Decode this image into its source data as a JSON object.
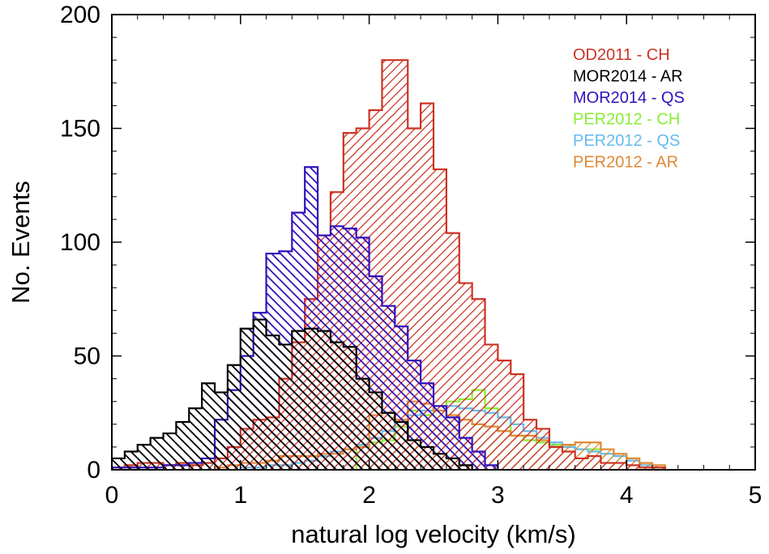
{
  "chart_data": {
    "type": "histogram",
    "title": "",
    "xlabel": "natural log velocity (km/s)",
    "ylabel": "No. Events",
    "xlim": [
      0,
      5
    ],
    "ylim": [
      0,
      200
    ],
    "xticks": [
      0,
      1,
      2,
      3,
      4,
      5
    ],
    "yticks": [
      0,
      50,
      100,
      150,
      200
    ],
    "legend_position": "top-right",
    "bin_width": 0.1,
    "series": [
      {
        "name": "PER2012 - CH",
        "color": "#88ee33",
        "hatch": "right",
        "x": [
          1.9,
          2.0,
          2.1,
          2.2,
          2.3,
          2.4,
          2.5,
          2.6,
          2.7,
          2.8,
          2.9,
          3.0,
          3.1,
          3.2,
          3.3,
          3.4,
          3.5,
          3.6,
          3.7,
          3.8,
          3.9,
          4.0,
          4.1,
          4.2
        ],
        "values": [
          10,
          12,
          13,
          19,
          26,
          24,
          28,
          30,
          31,
          35,
          27,
          23,
          15,
          13,
          12,
          11,
          10,
          9,
          9,
          7,
          6,
          5,
          3,
          1
        ]
      },
      {
        "name": "PER2012 - QS",
        "color": "#66bbee",
        "hatch": "right",
        "x": [
          1.0,
          1.1,
          1.2,
          1.3,
          1.4,
          1.5,
          1.6,
          1.7,
          1.8,
          1.9,
          2.0,
          2.1,
          2.2,
          2.3,
          2.4,
          2.5,
          2.6,
          2.7,
          2.8,
          2.9,
          3.0,
          3.1,
          3.2,
          3.3,
          3.4,
          3.5,
          3.6,
          3.7,
          3.8,
          3.9,
          4.0,
          4.1,
          4.2
        ],
        "values": [
          1,
          1,
          2,
          2,
          3,
          4,
          6,
          8,
          9,
          11,
          14,
          17,
          21,
          24,
          26,
          28,
          28,
          27,
          26,
          25,
          23,
          20,
          17,
          14,
          12,
          10,
          9,
          8,
          7,
          6,
          4,
          2,
          1
        ]
      },
      {
        "name": "PER2012 - AR",
        "color": "#e08833",
        "hatch": "right",
        "x": [
          0.8,
          0.9,
          1.0,
          1.1,
          1.2,
          1.3,
          1.4,
          1.5,
          1.6,
          1.7,
          1.8,
          1.9,
          2.0,
          2.1,
          2.2,
          2.3,
          2.4,
          2.5,
          2.6,
          2.7,
          2.8,
          2.9,
          3.0,
          3.1,
          3.2,
          3.3,
          3.4,
          3.5,
          3.6,
          3.7,
          3.8,
          3.9,
          4.0,
          4.1,
          4.2
        ],
        "values": [
          1,
          2,
          3,
          3,
          4,
          6,
          6,
          6,
          7,
          7,
          9,
          10,
          24,
          25,
          22,
          30,
          29,
          26,
          24,
          22,
          20,
          19,
          17,
          15,
          15,
          13,
          10,
          11,
          12,
          12,
          9,
          7,
          5,
          3,
          2
        ]
      },
      {
        "name": "OD2011 - CH",
        "color": "#cc3322",
        "hatch": "right",
        "x": [
          0.0,
          0.1,
          0.2,
          0.3,
          0.4,
          0.5,
          0.6,
          0.7,
          0.8,
          0.9,
          1.0,
          1.1,
          1.2,
          1.3,
          1.4,
          1.5,
          1.6,
          1.7,
          1.8,
          1.9,
          2.0,
          2.1,
          2.2,
          2.3,
          2.4,
          2.5,
          2.6,
          2.7,
          2.8,
          2.9,
          3.0,
          3.1,
          3.2,
          3.3,
          3.4,
          3.5,
          3.6,
          3.7,
          3.8,
          3.9,
          4.0,
          4.1,
          4.2
        ],
        "values": [
          1,
          2,
          3,
          3,
          2,
          3,
          2,
          3,
          5,
          10,
          18,
          22,
          23,
          40,
          56,
          75,
          103,
          122,
          148,
          150,
          158,
          180,
          180,
          150,
          161,
          132,
          104,
          82,
          75,
          55,
          48,
          42,
          22,
          18,
          10,
          8,
          5,
          6,
          3,
          3,
          2,
          1,
          1
        ]
      },
      {
        "name": "MOR2014 - QS",
        "color": "#3311bb",
        "hatch": "left",
        "x": [
          0.0,
          0.1,
          0.2,
          0.3,
          0.4,
          0.5,
          0.6,
          0.7,
          0.8,
          0.9,
          1.0,
          1.1,
          1.2,
          1.3,
          1.4,
          1.5,
          1.6,
          1.7,
          1.8,
          1.9,
          2.0,
          2.1,
          2.2,
          2.3,
          2.4,
          2.5,
          2.6,
          2.7,
          2.8,
          2.9
        ],
        "values": [
          1,
          1,
          1,
          1,
          2,
          2,
          3,
          5,
          22,
          35,
          50,
          69,
          95,
          96,
          113,
          133,
          103,
          107,
          106,
          102,
          85,
          72,
          63,
          48,
          38,
          28,
          23,
          14,
          8,
          2
        ]
      },
      {
        "name": "MOR2014 - AR",
        "color": "#000000",
        "hatch": "left",
        "x": [
          0.0,
          0.1,
          0.2,
          0.3,
          0.4,
          0.5,
          0.6,
          0.7,
          0.8,
          0.9,
          1.0,
          1.1,
          1.2,
          1.3,
          1.4,
          1.5,
          1.6,
          1.7,
          1.8,
          1.9,
          2.0,
          2.1,
          2.2,
          2.3,
          2.4,
          2.5,
          2.6,
          2.7
        ],
        "values": [
          5,
          8,
          11,
          14,
          16,
          21,
          27,
          38,
          34,
          46,
          62,
          66,
          59,
          55,
          61,
          62,
          61,
          56,
          54,
          40,
          34,
          25,
          21,
          13,
          10,
          7,
          5,
          2
        ]
      }
    ],
    "legend_order": [
      "OD2011 - CH",
      "MOR2014 - AR",
      "MOR2014 - QS",
      "PER2012 - CH",
      "PER2012 - QS",
      "PER2012 - AR"
    ]
  }
}
